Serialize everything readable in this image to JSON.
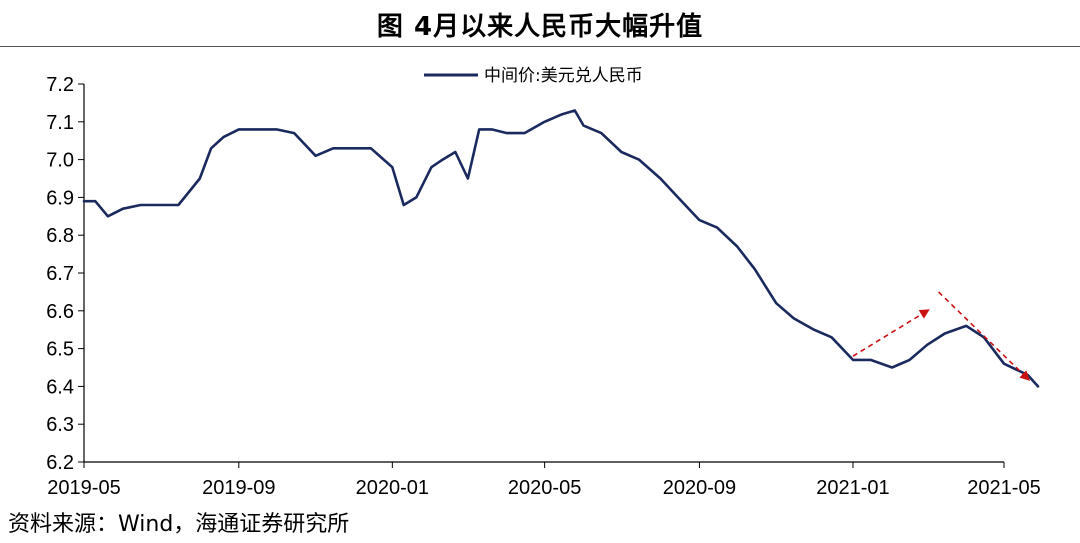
{
  "title": "图  4月以来人民币大幅升值",
  "source": "资料来源：Wind，海通证券研究所",
  "colors": {
    "line": "#1a2a5e",
    "arrow": "#cc1111",
    "axis": "#000000"
  },
  "chart_data": {
    "type": "line",
    "title": "图  4月以来人民币大幅升值",
    "legend_position": "top-center",
    "grid": false,
    "ylim": [
      6.2,
      7.2
    ],
    "yticks": [
      "7.2",
      "7.1",
      "7.0",
      "6.9",
      "6.8",
      "6.7",
      "6.6",
      "6.5",
      "6.4",
      "6.3",
      "6.2"
    ],
    "xticks": [
      "2019-05",
      "2019-09",
      "2020-01",
      "2020-05",
      "2020-09",
      "2021-01",
      "2021-05"
    ],
    "xlim": [
      "2019-05",
      "2021-05"
    ],
    "series": [
      {
        "name": "中间价:美元兑人民币",
        "x": [
          "2019-05-01",
          "2019-05-10",
          "2019-05-20",
          "2019-06-01",
          "2019-06-15",
          "2019-07-01",
          "2019-07-15",
          "2019-08-01",
          "2019-08-10",
          "2019-08-20",
          "2019-09-01",
          "2019-09-15",
          "2019-10-01",
          "2019-10-15",
          "2019-11-01",
          "2019-11-15",
          "2019-12-01",
          "2019-12-15",
          "2020-01-01",
          "2020-01-10",
          "2020-01-20",
          "2020-02-01",
          "2020-02-10",
          "2020-02-20",
          "2020-03-01",
          "2020-03-10",
          "2020-03-20",
          "2020-04-01",
          "2020-04-15",
          "2020-05-01",
          "2020-05-15",
          "2020-05-25",
          "2020-06-01",
          "2020-06-15",
          "2020-07-01",
          "2020-07-15",
          "2020-08-01",
          "2020-08-15",
          "2020-09-01",
          "2020-09-15",
          "2020-10-01",
          "2020-10-15",
          "2020-11-01",
          "2020-11-15",
          "2020-12-01",
          "2020-12-15",
          "2021-01-01",
          "2021-01-15",
          "2021-02-01",
          "2021-02-15",
          "2021-03-01",
          "2021-03-15",
          "2021-04-01",
          "2021-04-15",
          "2021-05-01",
          "2021-05-20",
          "2021-05-28"
        ],
        "values": [
          6.89,
          6.89,
          6.85,
          6.87,
          6.88,
          6.88,
          6.88,
          6.95,
          7.03,
          7.06,
          7.08,
          7.08,
          7.08,
          7.07,
          7.01,
          7.03,
          7.03,
          7.03,
          6.98,
          6.88,
          6.9,
          6.98,
          7.0,
          7.02,
          6.95,
          7.08,
          7.08,
          7.07,
          7.07,
          7.1,
          7.12,
          7.13,
          7.09,
          7.07,
          7.02,
          7.0,
          6.95,
          6.9,
          6.84,
          6.82,
          6.77,
          6.71,
          6.62,
          6.58,
          6.55,
          6.53,
          6.47,
          6.47,
          6.45,
          6.47,
          6.51,
          6.54,
          6.56,
          6.53,
          6.46,
          6.43,
          6.4
        ]
      }
    ],
    "annotations": [
      {
        "type": "arrow",
        "from": [
          "2021-01-01",
          6.48
        ],
        "to": [
          "2021-03-01",
          6.6
        ]
      },
      {
        "type": "arrow",
        "from": [
          "2021-03-10",
          6.65
        ],
        "to": [
          "2021-05-20",
          6.42
        ]
      }
    ]
  }
}
